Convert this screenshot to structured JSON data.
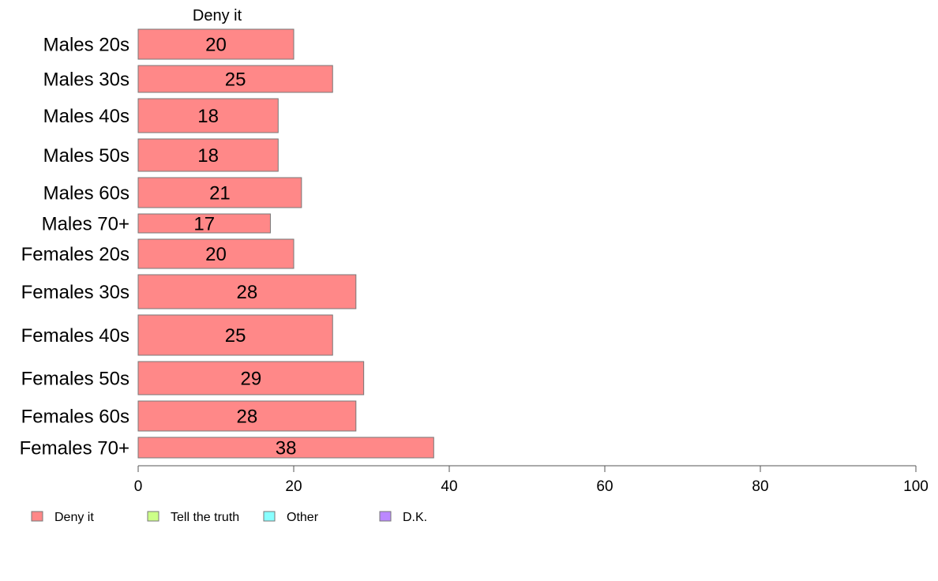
{
  "chart_data": {
    "type": "bar",
    "orientation": "horizontal",
    "column_title": "Deny it",
    "categories": [
      "Males 20s",
      "Males 30s",
      "Males 40s",
      "Males 50s",
      "Males 60s",
      "Males 70+",
      "Females 20s",
      "Females 30s",
      "Females 40s",
      "Females 50s",
      "Females 60s",
      "Females 70+"
    ],
    "series": [
      {
        "name": "Deny it",
        "color": "#ff8888",
        "values": [
          20,
          25,
          18,
          18,
          21,
          17,
          20,
          28,
          25,
          29,
          28,
          38
        ]
      }
    ],
    "legend": [
      {
        "name": "Deny it",
        "color": "#ff8888"
      },
      {
        "name": "Tell the truth",
        "color": "#ccff88"
      },
      {
        "name": "Other",
        "color": "#88ffff"
      },
      {
        "name": "D.K.",
        "color": "#bb88ff"
      }
    ],
    "legend_position": "bottom-left",
    "xlim": [
      0,
      100
    ],
    "xticks": [
      0,
      20,
      40,
      60,
      80,
      100
    ],
    "grid": false
  }
}
